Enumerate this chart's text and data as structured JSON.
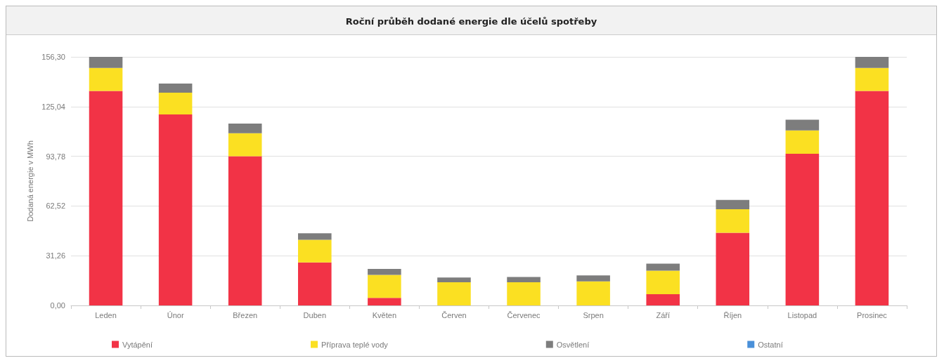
{
  "chart_data": {
    "type": "bar",
    "title": "Roční průběh dodané energie dle účelů spotřeby",
    "ylabel": "Dodaná energie v MWh",
    "stacked": true,
    "grid": "y",
    "legend": "bottom",
    "categories": [
      "Leden",
      "Únor",
      "Březen",
      "Duben",
      "Květen",
      "Červen",
      "Červenec",
      "Srpen",
      "Září",
      "Říjen",
      "Listopad",
      "Prosinec"
    ],
    "ylim": [
      0,
      156.3
    ],
    "yticks": [
      {
        "value": 0,
        "label": "0,00"
      },
      {
        "value": 31.26,
        "label": "31,26"
      },
      {
        "value": 62.52,
        "label": "62,52"
      },
      {
        "value": 93.78,
        "label": "93,78"
      },
      {
        "value": 125.04,
        "label": "125,04"
      },
      {
        "value": 156.3,
        "label": "156,30"
      }
    ],
    "series": [
      {
        "name": "Vytápění",
        "color": "#f23346",
        "values": [
          134.9,
          120.1,
          93.8,
          27.0,
          4.8,
          0,
          0,
          0,
          7.1,
          45.7,
          95.4,
          134.9
        ]
      },
      {
        "name": "Příprava teplé vody",
        "color": "#fbe022",
        "values": [
          14.5,
          13.7,
          14.5,
          14.3,
          14.4,
          14.6,
          14.6,
          15.1,
          14.8,
          14.8,
          14.6,
          14.5
        ]
      },
      {
        "name": "Osvětlení",
        "color": "#7d7d7d",
        "values": [
          6.9,
          5.7,
          6.0,
          4.1,
          3.8,
          2.9,
          3.3,
          3.8,
          4.4,
          5.8,
          6.8,
          6.9
        ]
      },
      {
        "name": "Ostatní",
        "color": "#4a90d9",
        "values": [
          0,
          0,
          0,
          0,
          0,
          0,
          0,
          0,
          0,
          0,
          0,
          0
        ]
      }
    ]
  }
}
